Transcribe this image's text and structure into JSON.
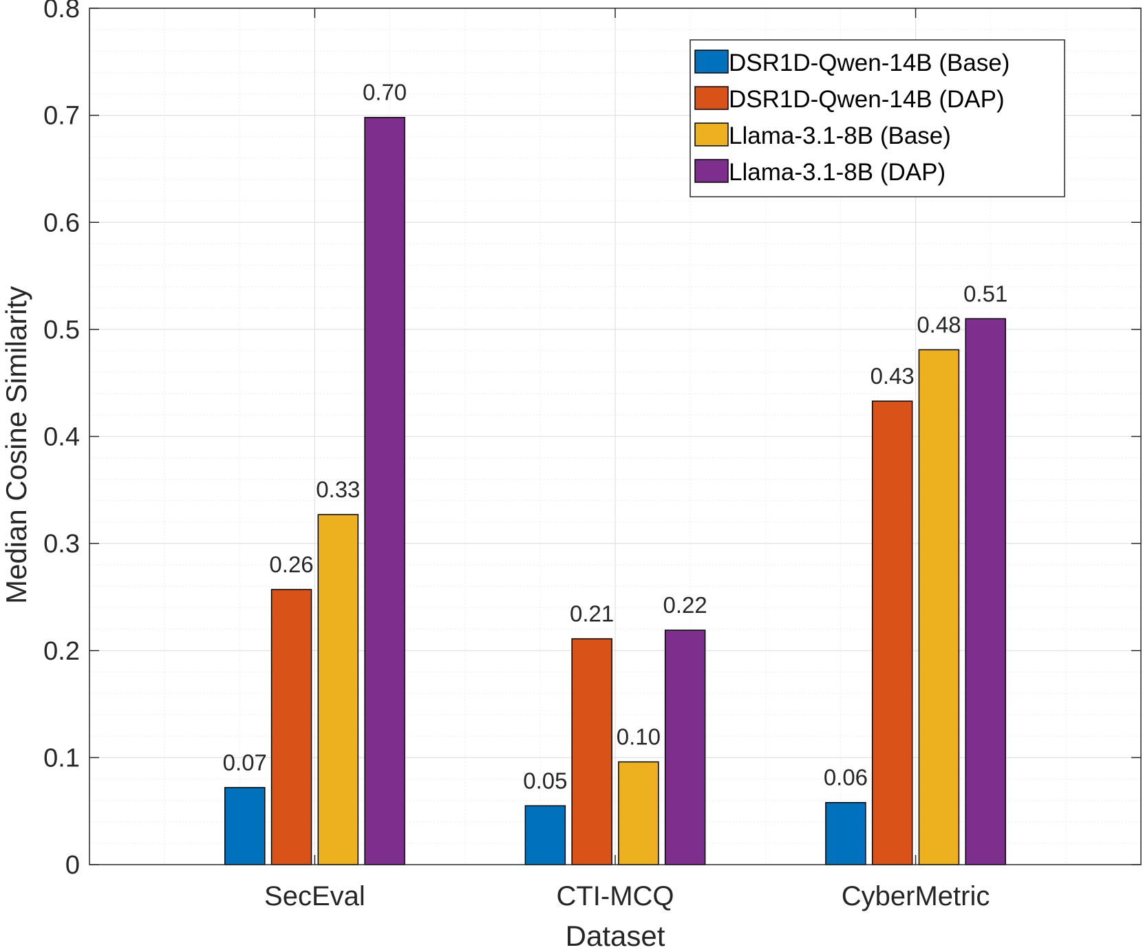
{
  "chart_data": {
    "type": "bar",
    "title": "",
    "xlabel": "Dataset",
    "ylabel": "Median Cosine Similarity",
    "ylim": [
      0,
      0.8
    ],
    "yticks": [
      0,
      0.1,
      0.2,
      0.3,
      0.4,
      0.5,
      0.6,
      0.7,
      0.8
    ],
    "ytick_labels": [
      "0",
      "0.1",
      "0.2",
      "0.3",
      "0.4",
      "0.5",
      "0.6",
      "0.7",
      "0.8"
    ],
    "grid": true,
    "minor_grid": true,
    "legend_position": "top-right",
    "categories": [
      "SecEval",
      "CTI-MCQ",
      "CyberMetric"
    ],
    "series": [
      {
        "name": "DSR1D-Qwen-14B (Base)",
        "color": "#0072BD",
        "values": [
          0.072,
          0.055,
          0.058
        ],
        "labels": [
          "0.07",
          "0.05",
          "0.06"
        ]
      },
      {
        "name": "DSR1D-Qwen-14B (DAP)",
        "color": "#D95319",
        "values": [
          0.257,
          0.211,
          0.433
        ],
        "labels": [
          "0.26",
          "0.21",
          "0.43"
        ]
      },
      {
        "name": "Llama-3.1-8B (Base)",
        "color": "#EDB120",
        "values": [
          0.327,
          0.096,
          0.481
        ],
        "labels": [
          "0.33",
          "0.10",
          "0.48"
        ]
      },
      {
        "name": "Llama-3.1-8B (DAP)",
        "color": "#7E2F8E",
        "values": [
          0.698,
          0.219,
          0.51
        ],
        "labels": [
          "0.70",
          "0.22",
          "0.51"
        ]
      }
    ]
  }
}
